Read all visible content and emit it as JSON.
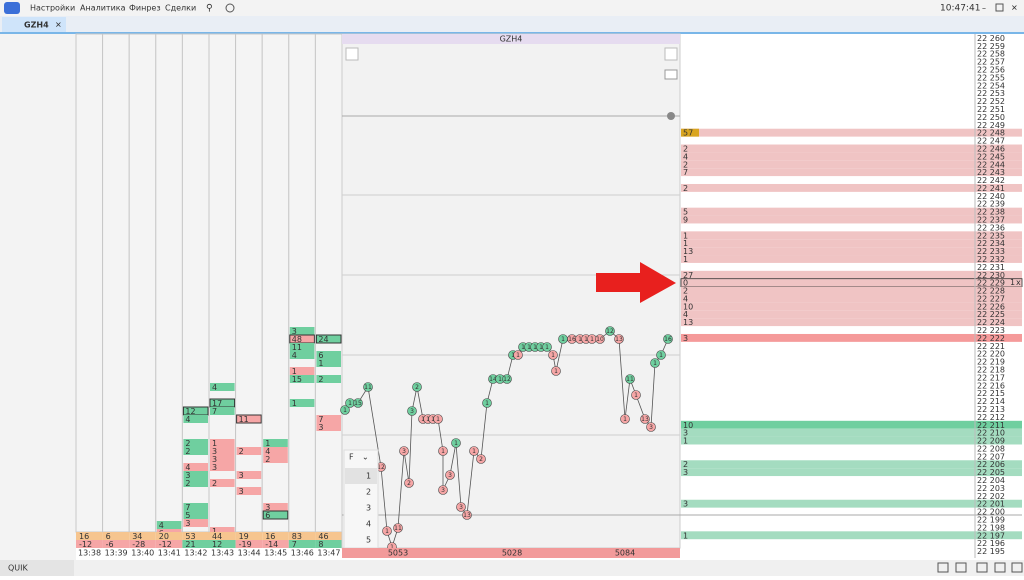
{
  "menu": {
    "items": [
      "Настройки",
      "Аналитика",
      "Финрез",
      "Сделки"
    ],
    "clock": "10:47:41"
  },
  "tab": {
    "title": "GZH4"
  },
  "footprint": {
    "columns": [
      {
        "time": "13:38",
        "total": 16,
        "delta": -12,
        "cells": []
      },
      {
        "time": "13:39",
        "total": 6,
        "delta": -6,
        "cells": []
      },
      {
        "time": "13:40",
        "total": 34,
        "delta": -28,
        "cells": []
      },
      {
        "time": "13:41",
        "total": 20,
        "delta": -12,
        "cells": [
          {
            "v": 4,
            "side": "buy"
          },
          {
            "v": 6,
            "side": "sell"
          }
        ]
      },
      {
        "time": "13:42",
        "total": 53,
        "delta": 21,
        "cells": [
          {
            "v": 12,
            "side": "buy",
            "boxed": true
          },
          {
            "v": 4,
            "side": "buy"
          },
          {
            "v": 2,
            "side": "buy"
          },
          {
            "v": 2,
            "side": "buy"
          },
          {
            "v": 4,
            "side": "sell"
          },
          {
            "v": 3,
            "side": "buy"
          },
          {
            "v": 2,
            "side": "buy"
          },
          {
            "v": 7,
            "side": "buy"
          },
          {
            "v": 5,
            "side": "buy"
          },
          {
            "v": 3,
            "side": "sell"
          }
        ]
      },
      {
        "time": "13:43",
        "total": 44,
        "delta": 12,
        "cells": [
          {
            "v": 4,
            "side": "buy"
          },
          {
            "v": 17,
            "side": "buy",
            "boxed": true
          },
          {
            "v": 7,
            "side": "buy"
          },
          {
            "v": 1,
            "side": "sell"
          },
          {
            "v": 3,
            "side": "sell"
          },
          {
            "v": 3,
            "side": "sell"
          },
          {
            "v": 3,
            "side": "sell"
          },
          {
            "v": 2,
            "side": "sell"
          },
          {
            "v": 1,
            "side": "sell"
          }
        ]
      },
      {
        "time": "13:44",
        "total": 19,
        "delta": -19,
        "cells": [
          {
            "v": 11,
            "side": "sell",
            "boxed": true
          },
          {
            "v": 2,
            "side": "sell"
          },
          {
            "v": 3,
            "side": "sell"
          },
          {
            "v": 3,
            "side": "sell"
          }
        ]
      },
      {
        "time": "13:45",
        "total": 16,
        "delta": -14,
        "cells": [
          {
            "v": 1,
            "side": "buy"
          },
          {
            "v": 4,
            "side": "sell"
          },
          {
            "v": 2,
            "side": "sell"
          },
          {
            "v": 3,
            "side": "sell"
          },
          {
            "v": 6,
            "side": "buy",
            "boxed": true
          }
        ]
      },
      {
        "time": "13:46",
        "total": 83,
        "delta": 7,
        "cells": [
          {
            "v": 3,
            "side": "buy"
          },
          {
            "v": 48,
            "side": "sell",
            "boxed": true
          },
          {
            "v": 11,
            "side": "buy"
          },
          {
            "v": 4,
            "side": "buy"
          },
          {
            "v": 1,
            "side": "sell"
          },
          {
            "v": 15,
            "side": "buy"
          },
          {
            "v": 1,
            "side": "buy"
          }
        ]
      },
      {
        "time": "13:47",
        "total": 46,
        "delta": 8,
        "cells": [
          {
            "v": 24,
            "side": "buy",
            "boxed": true
          },
          {
            "v": 6,
            "side": "buy"
          },
          {
            "v": 1,
            "side": "buy"
          },
          {
            "v": 2,
            "side": "buy"
          },
          {
            "v": 7,
            "side": "sell"
          },
          {
            "v": 3,
            "side": "sell"
          }
        ]
      }
    ]
  },
  "chart": {
    "title": "GZH4",
    "x_labels": [
      "5053",
      "5028",
      "5084"
    ],
    "filter": "F",
    "levels": [
      1,
      2,
      3,
      4,
      5
    ],
    "points": [
      {
        "v": 1,
        "side": "buy"
      },
      {
        "v": 1,
        "side": "buy"
      },
      {
        "v": 15,
        "side": "buy"
      },
      {
        "v": 11,
        "side": "buy"
      },
      {
        "v": 12,
        "side": "sell"
      },
      {
        "v": 1,
        "side": "sell"
      },
      {
        "v": 1,
        "side": "sell"
      },
      {
        "v": 11,
        "side": "sell"
      },
      {
        "v": 3,
        "side": "sell"
      },
      {
        "v": 2,
        "side": "sell"
      },
      {
        "v": 3,
        "side": "buy"
      },
      {
        "v": 2,
        "side": "buy"
      },
      {
        "v": 1,
        "side": "sell"
      },
      {
        "v": 1,
        "side": "sell"
      },
      {
        "v": 1,
        "side": "sell"
      },
      {
        "v": 1,
        "side": "sell"
      },
      {
        "v": 1,
        "side": "sell"
      },
      {
        "v": 3,
        "side": "sell"
      },
      {
        "v": 3,
        "side": "sell"
      },
      {
        "v": 1,
        "side": "buy"
      },
      {
        "v": 3,
        "side": "sell"
      },
      {
        "v": 13,
        "side": "sell"
      },
      {
        "v": 1,
        "side": "sell"
      },
      {
        "v": 2,
        "side": "sell"
      },
      {
        "v": 1,
        "side": "buy"
      },
      {
        "v": 14,
        "side": "buy"
      },
      {
        "v": 1,
        "side": "buy"
      },
      {
        "v": 12,
        "side": "buy"
      },
      {
        "v": 1,
        "side": "buy"
      },
      {
        "v": 1,
        "side": "sell"
      },
      {
        "v": 1,
        "side": "buy"
      },
      {
        "v": 1,
        "side": "buy"
      },
      {
        "v": 1,
        "side": "buy"
      },
      {
        "v": 1,
        "side": "buy"
      },
      {
        "v": 1,
        "side": "buy"
      },
      {
        "v": 1,
        "side": "sell"
      },
      {
        "v": 1,
        "side": "sell"
      },
      {
        "v": 1,
        "side": "buy"
      },
      {
        "v": 16,
        "side": "sell"
      },
      {
        "v": 1,
        "side": "sell"
      },
      {
        "v": 1,
        "side": "sell"
      },
      {
        "v": 1,
        "side": "sell"
      },
      {
        "v": 10,
        "side": "sell"
      },
      {
        "v": 12,
        "side": "buy"
      },
      {
        "v": 13,
        "side": "sell"
      },
      {
        "v": 1,
        "side": "sell"
      },
      {
        "v": 11,
        "side": "buy"
      },
      {
        "v": 1,
        "side": "sell"
      },
      {
        "v": 13,
        "side": "sell"
      },
      {
        "v": 3,
        "side": "sell"
      },
      {
        "v": 1,
        "side": "buy"
      },
      {
        "v": 1,
        "side": "buy"
      },
      {
        "v": 16,
        "side": "buy"
      }
    ]
  },
  "ladder": {
    "order": {
      "qty": 1,
      "label": "x"
    },
    "rows": [
      {
        "price": "22 260"
      },
      {
        "price": "22 259"
      },
      {
        "price": "22 258"
      },
      {
        "price": "22 257"
      },
      {
        "price": "22 256"
      },
      {
        "price": "22 255"
      },
      {
        "price": "22 254"
      },
      {
        "price": "22 253"
      },
      {
        "price": "22 252"
      },
      {
        "price": "22 251"
      },
      {
        "price": "22 250"
      },
      {
        "price": "22 249"
      },
      {
        "price": "22 248",
        "volume": 57,
        "side": "ask",
        "highlight": true
      },
      {
        "price": "22 247"
      },
      {
        "price": "22 246",
        "volume": 2,
        "side": "ask"
      },
      {
        "price": "22 245",
        "volume": 4,
        "side": "ask"
      },
      {
        "price": "22 244",
        "volume": 2,
        "side": "ask"
      },
      {
        "price": "22 243",
        "volume": 7,
        "side": "ask"
      },
      {
        "price": "22 242"
      },
      {
        "price": "22 241",
        "volume": 2,
        "side": "ask"
      },
      {
        "price": "22 240"
      },
      {
        "price": "22 239"
      },
      {
        "price": "22 238",
        "volume": 5,
        "side": "ask"
      },
      {
        "price": "22 237",
        "volume": 9,
        "side": "ask"
      },
      {
        "price": "22 236"
      },
      {
        "price": "22 235",
        "volume": 1,
        "side": "ask"
      },
      {
        "price": "22 234",
        "volume": 1,
        "side": "ask"
      },
      {
        "price": "22 233",
        "volume": 13,
        "side": "ask"
      },
      {
        "price": "22 232",
        "volume": 1,
        "side": "ask"
      },
      {
        "price": "22 231"
      },
      {
        "price": "22 230",
        "volume": 27,
        "side": "ask"
      },
      {
        "price": "22 229",
        "volume": 0,
        "side": "ask",
        "current": true
      },
      {
        "price": "22 228",
        "volume": 2,
        "side": "ask"
      },
      {
        "price": "22 227",
        "volume": 4,
        "side": "ask"
      },
      {
        "price": "22 226",
        "volume": 10,
        "side": "ask"
      },
      {
        "price": "22 225",
        "volume": 4,
        "side": "ask"
      },
      {
        "price": "22 224",
        "volume": 13,
        "side": "ask"
      },
      {
        "price": "22 223"
      },
      {
        "price": "22 222",
        "volume": 3,
        "side": "best-ask"
      },
      {
        "price": "22 221"
      },
      {
        "price": "22 220"
      },
      {
        "price": "22 219"
      },
      {
        "price": "22 218"
      },
      {
        "price": "22 217"
      },
      {
        "price": "22 216"
      },
      {
        "price": "22 215"
      },
      {
        "price": "22 214"
      },
      {
        "price": "22 213"
      },
      {
        "price": "22 212"
      },
      {
        "price": "22 211",
        "volume": 10,
        "side": "best-bid"
      },
      {
        "price": "22 210",
        "volume": 3,
        "side": "bid"
      },
      {
        "price": "22 209",
        "volume": 1,
        "side": "bid"
      },
      {
        "price": "22 208"
      },
      {
        "price": "22 207"
      },
      {
        "price": "22 206",
        "volume": 2,
        "side": "bid"
      },
      {
        "price": "22 205",
        "volume": 3,
        "side": "bid"
      },
      {
        "price": "22 204"
      },
      {
        "price": "22 203"
      },
      {
        "price": "22 202"
      },
      {
        "price": "22 201",
        "volume": 3,
        "side": "bid"
      },
      {
        "price": "22 200"
      },
      {
        "price": "22 199"
      },
      {
        "price": "22 198"
      },
      {
        "price": "22 197",
        "volume": 1,
        "side": "bid"
      },
      {
        "price": "22 196"
      },
      {
        "price": "22 195"
      }
    ]
  },
  "status": {
    "text": "QUIK"
  }
}
